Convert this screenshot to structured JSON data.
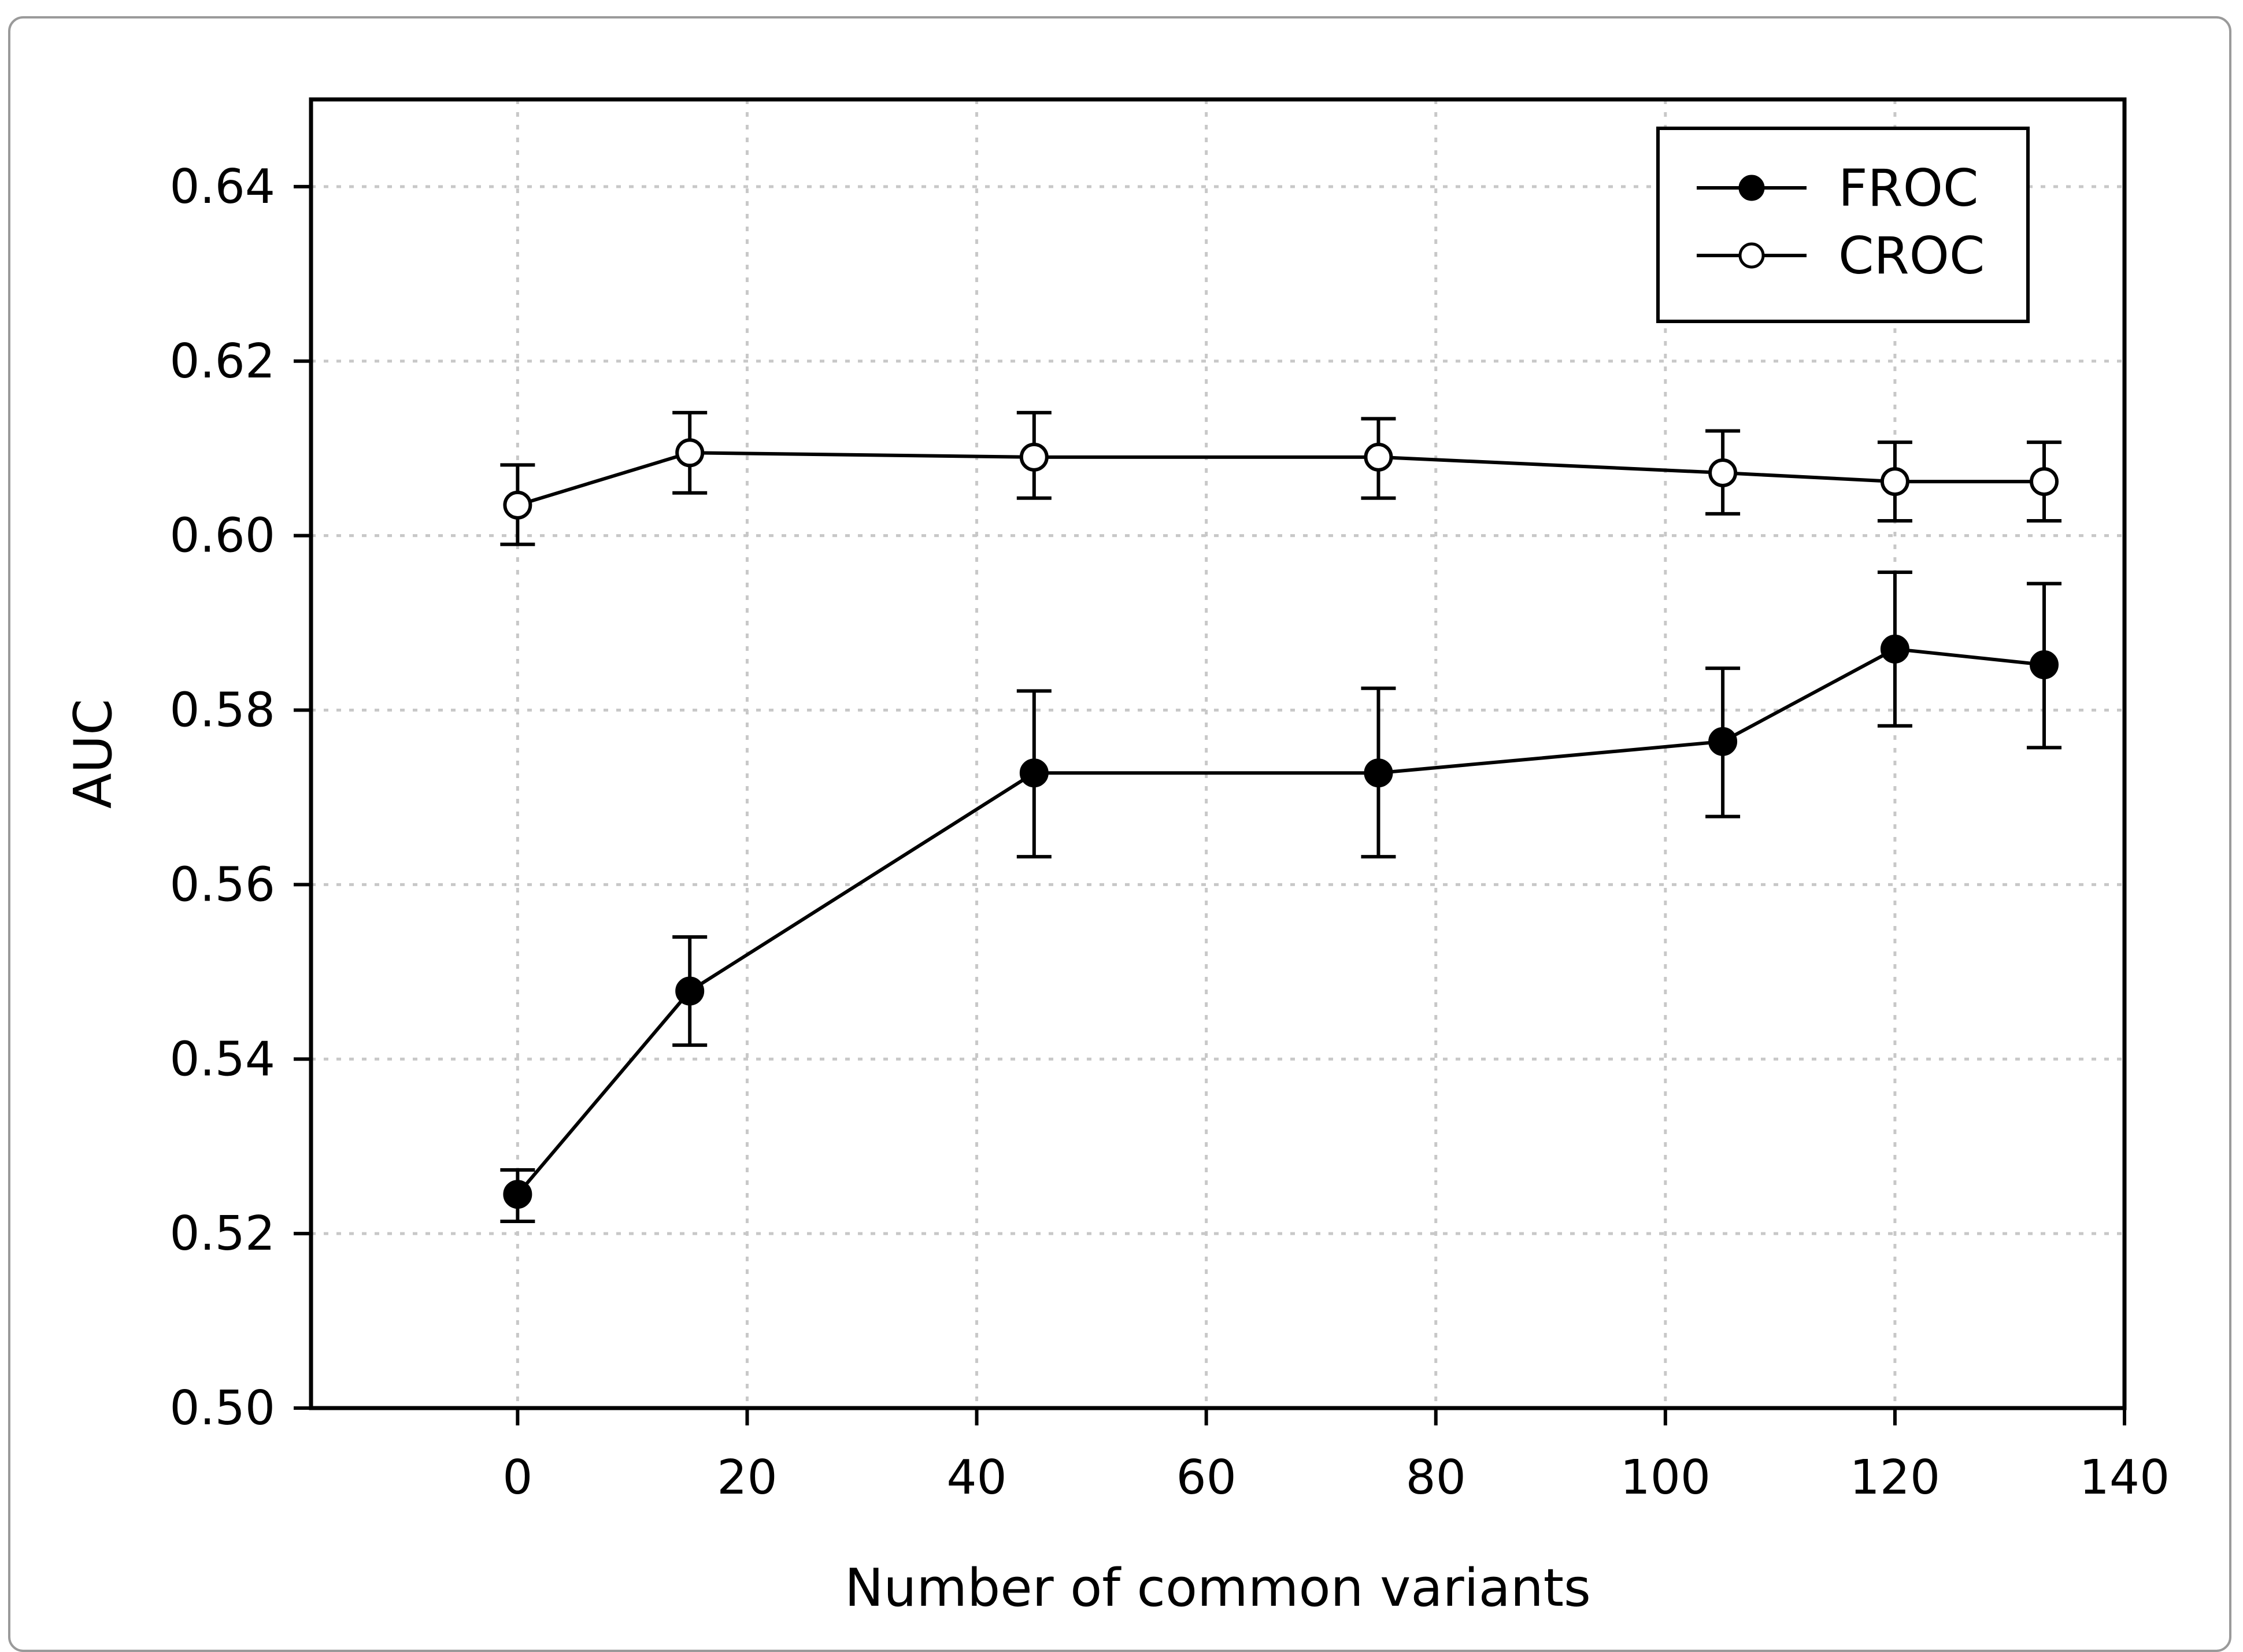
{
  "chart_data": {
    "type": "line",
    "title": "",
    "xlabel": "Number of common variants",
    "ylabel": "AUC",
    "xlim": [
      -18,
      140
    ],
    "ylim": [
      0.5,
      0.65
    ],
    "x_ticks": [
      0,
      20,
      40,
      60,
      80,
      100,
      120,
      140
    ],
    "x_tick_labels": [
      "0",
      "20",
      "40",
      "60",
      "80",
      "100",
      "120",
      "140"
    ],
    "y_ticks": [
      0.5,
      0.52,
      0.54,
      0.56,
      0.58,
      0.6,
      0.62,
      0.64
    ],
    "y_tick_labels": [
      "0.50",
      "0.52",
      "0.54",
      "0.56",
      "0.58",
      "0.60",
      "0.62",
      "0.64"
    ],
    "grid": true,
    "legend_position": "top-right",
    "series": [
      {
        "name": "FROC",
        "marker": "filled-circle",
        "x": [
          0,
          15,
          45,
          75,
          105,
          120,
          133
        ],
        "y": [
          0.5245,
          0.5478,
          0.5728,
          0.5728,
          0.5764,
          0.587,
          0.5852
        ],
        "err_low": [
          0.5214,
          0.5416,
          0.5632,
          0.5632,
          0.5678,
          0.5782,
          0.5757
        ],
        "err_high": [
          0.5273,
          0.554,
          0.5822,
          0.5825,
          0.5848,
          0.5958,
          0.5945
        ]
      },
      {
        "name": "CROC",
        "marker": "open-circle",
        "x": [
          0,
          15,
          45,
          75,
          105,
          120,
          133
        ],
        "y": [
          0.6035,
          0.6095,
          0.609,
          0.609,
          0.6072,
          0.6062,
          0.6062
        ],
        "err_low": [
          0.599,
          0.6049,
          0.6043,
          0.6043,
          0.6025,
          0.6017,
          0.6017
        ],
        "err_high": [
          0.6081,
          0.6141,
          0.6141,
          0.6134,
          0.612,
          0.6107,
          0.6107
        ]
      }
    ]
  },
  "colors": {
    "line": "#000000",
    "grid": "#c8c8c8",
    "frame": "#9a9a9a",
    "background": "#ffffff"
  }
}
